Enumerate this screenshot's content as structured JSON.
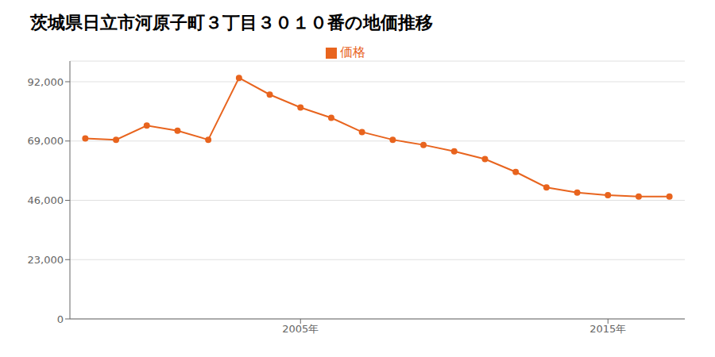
{
  "chart_data": {
    "type": "line",
    "title": "茨城県日立市河原子町３丁目３０１０番の地価推移",
    "x": [
      1998,
      1999,
      2000,
      2001,
      2002,
      2003,
      2004,
      2005,
      2006,
      2007,
      2008,
      2009,
      2010,
      2011,
      2012,
      2013,
      2014,
      2015,
      2016,
      2017
    ],
    "series": [
      {
        "name": "価格",
        "color": "#e8641e",
        "marker": "o",
        "values": [
          70000,
          69500,
          75000,
          73000,
          69500,
          93500,
          87000,
          82000,
          78000,
          72500,
          69500,
          67500,
          65000,
          62000,
          57000,
          51000,
          49000,
          48000,
          47500,
          47500
        ]
      }
    ],
    "xlim": [
      1997.5,
      2017.5
    ],
    "xticks": [
      {
        "value": 2005,
        "label": "2005年"
      },
      {
        "value": 2015,
        "label": "2015年"
      }
    ],
    "ylim": [
      0,
      100000
    ],
    "yticks": [
      0,
      {
        "value": 23000,
        "label": "23,000"
      },
      {
        "value": 46000,
        "label": "46,000"
      },
      {
        "value": 69000,
        "label": "69,000"
      },
      {
        "value": 92000,
        "label": "92,000"
      }
    ],
    "grid": "y",
    "legend": "top"
  }
}
